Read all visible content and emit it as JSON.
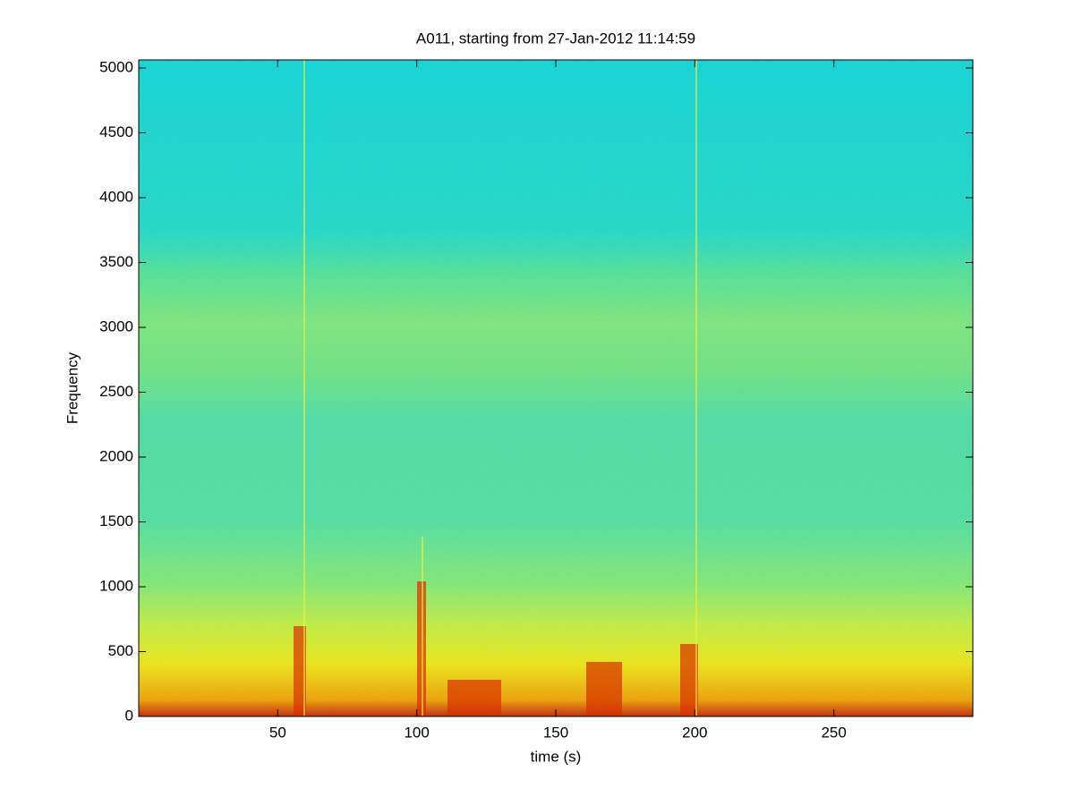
{
  "chart_data": {
    "type": "spectrogram",
    "title": "A011, starting from 27-Jan-2012 11:14:59",
    "x_label": "time (s)",
    "y_label": "Frequency",
    "xlim": [
      0,
      300
    ],
    "xticks": [
      50,
      100,
      150,
      200,
      250
    ],
    "ylim": [
      0,
      5062
    ],
    "yticks": [
      0,
      500,
      1000,
      1500,
      2000,
      2500,
      3000,
      3500,
      4000,
      4500,
      5000
    ],
    "colormap": "jet"
  }
}
